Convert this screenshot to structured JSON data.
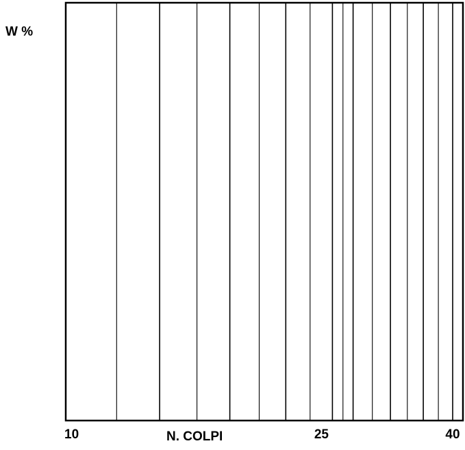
{
  "chart_data": {
    "type": "line",
    "title": "",
    "xlabel": "N. COLPI",
    "ylabel": "W %",
    "x_scale": "log",
    "xlim": [
      10,
      41.5
    ],
    "x_ticks": [
      {
        "value": 10,
        "label": "10"
      },
      {
        "value": 25,
        "label": "25"
      },
      {
        "value": 40,
        "label": "40"
      }
    ],
    "x_gridlines": [
      10,
      12,
      14,
      16,
      18,
      20,
      22,
      24,
      26,
      27,
      28,
      30,
      32,
      34,
      36,
      38,
      40
    ],
    "grid": true,
    "series": []
  },
  "colors": {
    "frame": "#000000",
    "gridline": "#000000",
    "background": "#ffffff"
  }
}
